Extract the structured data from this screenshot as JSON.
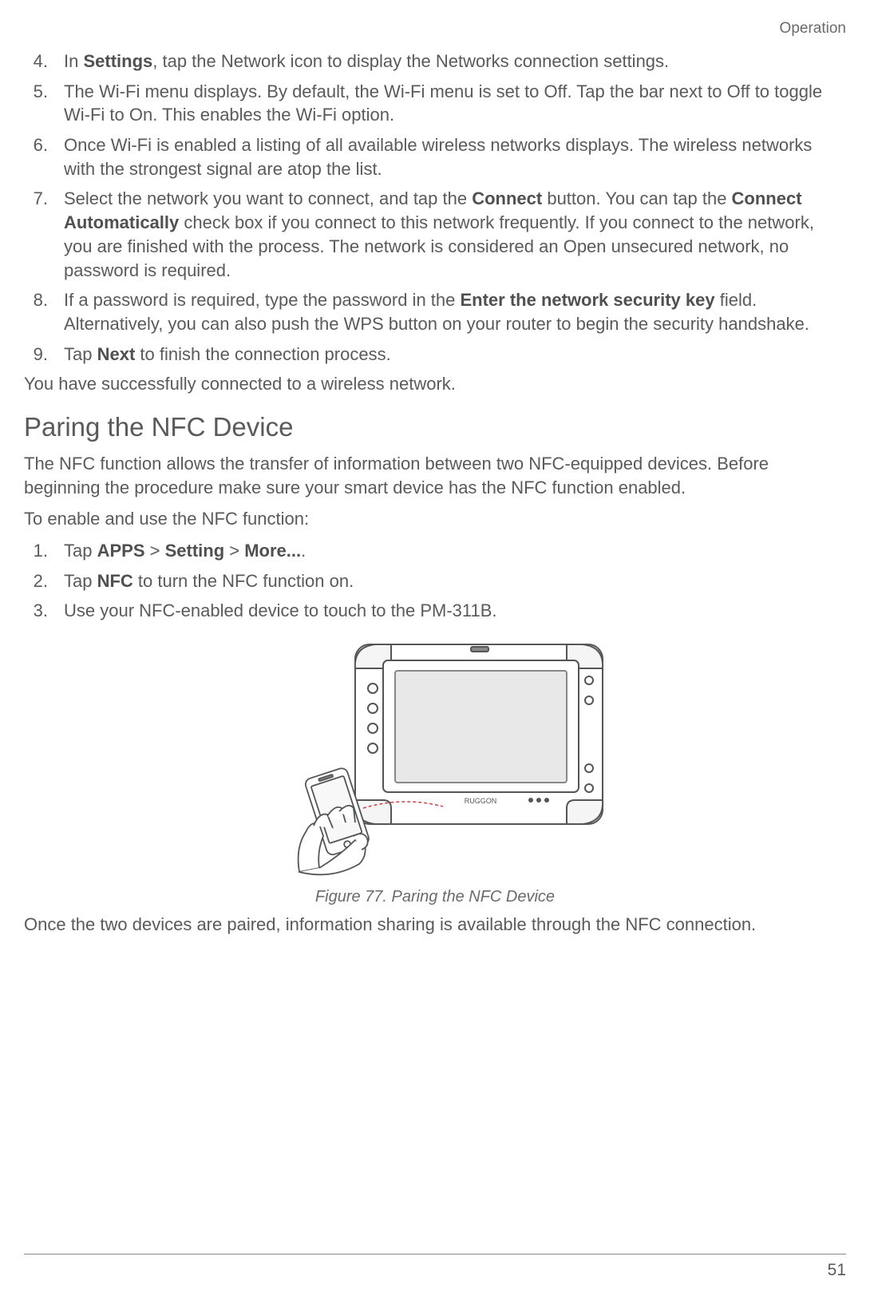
{
  "header": {
    "section_label": "Operation"
  },
  "list1": {
    "items": [
      {
        "num": "4.",
        "segments": [
          {
            "text": "In ",
            "bold": false
          },
          {
            "text": "Settings",
            "bold": true
          },
          {
            "text": ", tap the Network icon to display the Networks connection settings.",
            "bold": false
          }
        ]
      },
      {
        "num": "5.",
        "segments": [
          {
            "text": "The Wi-Fi menu displays. By default, the Wi-Fi menu is set to Off. Tap the bar next to Off to toggle Wi-Fi to On. This enables the Wi-Fi option.",
            "bold": false
          }
        ]
      },
      {
        "num": "6.",
        "segments": [
          {
            "text": "Once Wi-Fi is enabled a listing of all available wireless networks displays. The wireless networks with the strongest signal are atop the list.",
            "bold": false
          }
        ]
      },
      {
        "num": "7.",
        "segments": [
          {
            "text": "Select the network you want to connect, and tap the ",
            "bold": false
          },
          {
            "text": "Connect",
            "bold": true
          },
          {
            "text": " button. You can tap the ",
            "bold": false
          },
          {
            "text": "Connect Automatically",
            "bold": true
          },
          {
            "text": " check box if you connect to this network frequently. If you connect to the network, you are finished with the process. The network is considered an Open unsecured network, no password is required.",
            "bold": false
          }
        ]
      },
      {
        "num": "8.",
        "segments": [
          {
            "text": "If a password is required, type the password in the ",
            "bold": false
          },
          {
            "text": "Enter the network security key",
            "bold": true
          },
          {
            "text": " field. Alternatively, you can also push the WPS button on your router to begin the security handshake.",
            "bold": false
          }
        ]
      },
      {
        "num": "9.",
        "segments": [
          {
            "text": "Tap ",
            "bold": false
          },
          {
            "text": "Next",
            "bold": true
          },
          {
            "text": " to finish the connection process.",
            "bold": false
          }
        ]
      }
    ]
  },
  "paragraph1": "You have successfully connected to a wireless network.",
  "heading1": "Paring the NFC Device",
  "paragraph2": "The NFC function allows the transfer of information between two NFC-equipped devices. Before beginning the procedure make sure your smart device has the NFC function enabled.",
  "paragraph3": "To enable and use the NFC function:",
  "list2": {
    "items": [
      {
        "num": "1.",
        "segments": [
          {
            "text": "Tap ",
            "bold": false
          },
          {
            "text": "APPS",
            "bold": true
          },
          {
            "text": " > ",
            "bold": false
          },
          {
            "text": "Setting",
            "bold": true
          },
          {
            "text": " > ",
            "bold": false
          },
          {
            "text": "More...",
            "bold": true
          },
          {
            "text": ".",
            "bold": false
          }
        ]
      },
      {
        "num": "2.",
        "segments": [
          {
            "text": "Tap ",
            "bold": false
          },
          {
            "text": "NFC",
            "bold": true
          },
          {
            "text": " to turn the NFC function on.",
            "bold": false
          }
        ]
      },
      {
        "num": "3.",
        "segments": [
          {
            "text": "Use your NFC-enabled device to touch to the PM-311B.",
            "bold": false
          }
        ]
      }
    ]
  },
  "figure": {
    "caption": "Figure 77.  Paring the NFC Device"
  },
  "paragraph4": "Once the two devices are paired, information sharing is available through the NFC connection.",
  "footer": {
    "page_number": "51"
  },
  "colors": {
    "text": "#5a5a5a",
    "bold_text": "#505050",
    "border": "#888888",
    "stroke": "#555555"
  }
}
